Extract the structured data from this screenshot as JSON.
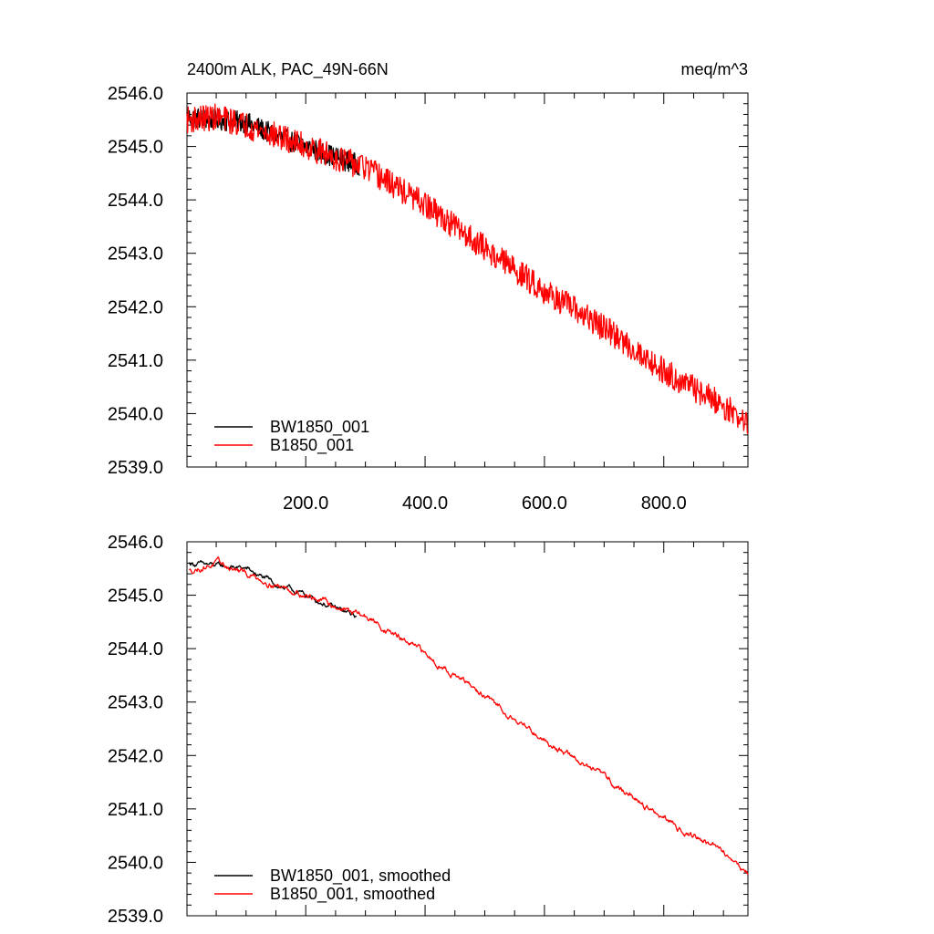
{
  "figure": {
    "title_left": "2400m ALK, PAC_49N-66N",
    "title_right": "meq/m^3"
  },
  "chart_data": [
    {
      "type": "line",
      "title": "2400m ALK, PAC_49N-66N",
      "units": "meq/m^3",
      "xlim": [
        1,
        941
      ],
      "ylim": [
        2539.0,
        2546.0
      ],
      "xticks": [
        200,
        400,
        600,
        800
      ],
      "xtick_labels": [
        "200.0",
        "400.0",
        "600.0",
        "800.0"
      ],
      "yticks": [
        2539,
        2540,
        2541,
        2542,
        2543,
        2544,
        2545,
        2546
      ],
      "ytick_labels": [
        "2539.0",
        "2540.0",
        "2541.0",
        "2542.0",
        "2543.0",
        "2544.0",
        "2545.0",
        "2546.0"
      ],
      "legend_position": "bottom-left",
      "series": [
        {
          "name": "BW1850_001",
          "color": "#000000",
          "x_range": [
            1,
            290
          ],
          "anchors": [
            [
              1,
              2545.55
            ],
            [
              50,
              2545.5
            ],
            [
              100,
              2545.45
            ],
            [
              150,
              2545.2
            ],
            [
              200,
              2545.0
            ],
            [
              250,
              2544.8
            ],
            [
              290,
              2544.65
            ]
          ],
          "noise_amplitude": 0.2
        },
        {
          "name": "B1850_001",
          "color": "#ff0000",
          "x_range": [
            1,
            941
          ],
          "anchors": [
            [
              1,
              2545.5
            ],
            [
              50,
              2545.55
            ],
            [
              100,
              2545.4
            ],
            [
              150,
              2545.2
            ],
            [
              200,
              2545.0
            ],
            [
              300,
              2544.6
            ],
            [
              400,
              2543.9
            ],
            [
              500,
              2543.1
            ],
            [
              600,
              2542.3
            ],
            [
              700,
              2541.6
            ],
            [
              800,
              2540.8
            ],
            [
              900,
              2540.15
            ],
            [
              941,
              2539.8
            ]
          ],
          "noise_amplitude": 0.25
        }
      ]
    },
    {
      "type": "line",
      "title": "",
      "xlim": [
        1,
        941
      ],
      "ylim": [
        2539.0,
        2546.0
      ],
      "xticks": [
        200,
        400,
        600,
        800
      ],
      "xtick_labels": [],
      "yticks": [
        2539,
        2540,
        2541,
        2542,
        2543,
        2544,
        2545,
        2546
      ],
      "ytick_labels": [
        "2539.0",
        "2540.0",
        "2541.0",
        "2542.0",
        "2543.0",
        "2544.0",
        "2545.0",
        "2546.0"
      ],
      "legend_position": "bottom-left",
      "series": [
        {
          "name": "BW1850_001, smoothed",
          "color": "#000000",
          "x_range": [
            5,
            285
          ],
          "anchors": [
            [
              5,
              2545.6
            ],
            [
              50,
              2545.55
            ],
            [
              100,
              2545.5
            ],
            [
              150,
              2545.2
            ],
            [
              200,
              2545.0
            ],
            [
              250,
              2544.75
            ],
            [
              285,
              2544.6
            ]
          ],
          "noise_amplitude": 0.06
        },
        {
          "name": "B1850_001, smoothed",
          "color": "#ff0000",
          "x_range": [
            5,
            941
          ],
          "anchors": [
            [
              5,
              2545.45
            ],
            [
              50,
              2545.6
            ],
            [
              100,
              2545.4
            ],
            [
              150,
              2545.2
            ],
            [
              200,
              2545.0
            ],
            [
              300,
              2544.6
            ],
            [
              400,
              2543.9
            ],
            [
              500,
              2543.1
            ],
            [
              600,
              2542.3
            ],
            [
              700,
              2541.6
            ],
            [
              800,
              2540.8
            ],
            [
              900,
              2540.2
            ],
            [
              941,
              2539.8
            ]
          ],
          "noise_amplitude": 0.07
        }
      ]
    }
  ]
}
